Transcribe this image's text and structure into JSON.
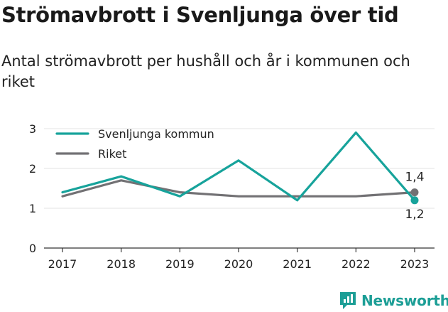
{
  "title": "Strömavbrott i Svenljunga över tid",
  "subtitle": "Antal strömavbrott per hushåll och år i kommunen och riket",
  "brand": {
    "name": "Newsworthy",
    "icon": "newsworthy-logo-icon"
  },
  "colors": {
    "kommun": "#17a39b",
    "riket": "#727174",
    "grid": "#e3e3e3",
    "axis": "#333333"
  },
  "chart_data": {
    "type": "line",
    "x": [
      "2017",
      "2018",
      "2019",
      "2020",
      "2021",
      "2022",
      "2023"
    ],
    "series": [
      {
        "name": "Svenljunga kommun",
        "values": [
          1.4,
          1.8,
          1.3,
          2.2,
          1.2,
          2.9,
          1.2
        ],
        "end_label": "1,2"
      },
      {
        "name": "Riket",
        "values": [
          1.3,
          1.7,
          1.4,
          1.3,
          1.3,
          1.3,
          1.4
        ],
        "end_label": "1,4"
      }
    ],
    "yticks": [
      "0",
      "1",
      "2",
      "3"
    ],
    "ylim": [
      0,
      3
    ],
    "grid": true,
    "legend": "top-left"
  }
}
